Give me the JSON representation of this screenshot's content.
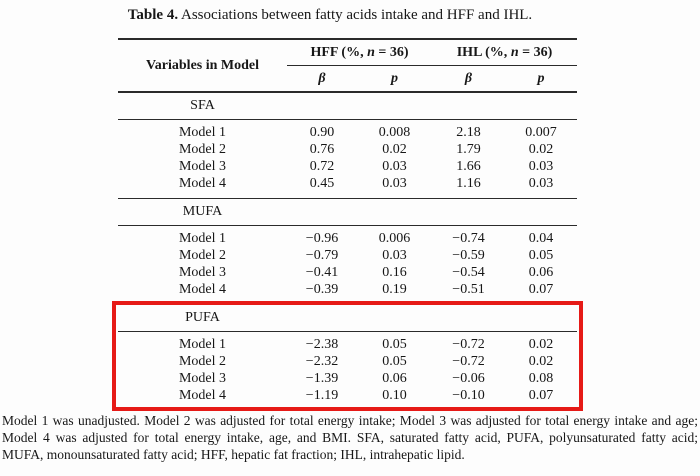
{
  "title": {
    "label": "Table 4.",
    "text": " Associations between fatty acids intake and HFF and IHL."
  },
  "table": {
    "variables_header": "Variables in Model",
    "group1": {
      "pre": "HFF (%, ",
      "n": "n",
      "post": " = 36)"
    },
    "group2": {
      "pre": "IHL (%, ",
      "n": "n",
      "post": " = 36)"
    },
    "subheaders": {
      "b1": "β",
      "p1": "p",
      "b2": "β",
      "p2": "p"
    },
    "sections": [
      {
        "label": "SFA",
        "highlighted": false,
        "rows": [
          {
            "label": "Model 1",
            "v": [
              "0.90",
              "0.008",
              "2.18",
              "0.007"
            ]
          },
          {
            "label": "Model 2",
            "v": [
              "0.76",
              "0.02",
              "1.79",
              "0.02"
            ]
          },
          {
            "label": "Model 3",
            "v": [
              "0.72",
              "0.03",
              "1.66",
              "0.03"
            ]
          },
          {
            "label": "Model 4",
            "v": [
              "0.45",
              "0.03",
              "1.16",
              "0.03"
            ]
          }
        ]
      },
      {
        "label": "MUFA",
        "highlighted": false,
        "rows": [
          {
            "label": "Model 1",
            "v": [
              "−0.96",
              "0.006",
              "−0.74",
              "0.04"
            ]
          },
          {
            "label": "Model 2",
            "v": [
              "−0.79",
              "0.03",
              "−0.59",
              "0.05"
            ]
          },
          {
            "label": "Model 3",
            "v": [
              "−0.41",
              "0.16",
              "−0.54",
              "0.06"
            ]
          },
          {
            "label": "Model 4",
            "v": [
              "−0.39",
              "0.19",
              "−0.51",
              "0.07"
            ]
          }
        ]
      },
      {
        "label": "PUFA",
        "highlighted": true,
        "rows": [
          {
            "label": "Model 1",
            "v": [
              "−2.38",
              "0.05",
              "−0.72",
              "0.02"
            ]
          },
          {
            "label": "Model 2",
            "v": [
              "−2.32",
              "0.05",
              "−0.72",
              "0.02"
            ]
          },
          {
            "label": "Model 3",
            "v": [
              "−1.39",
              "0.06",
              "−0.06",
              "0.08"
            ]
          },
          {
            "label": "Model 4",
            "v": [
              "−1.19",
              "0.10",
              "−0.10",
              "0.07"
            ]
          }
        ]
      }
    ]
  },
  "footnote": "Model 1 was unadjusted. Model 2 was adjusted for total energy intake; Model 3 was adjusted for total energy intake and age; Model 4 was adjusted for total energy intake, age, and BMI. SFA, saturated fatty acid, PUFA, polyunsaturated fatty acid; MUFA, monounsaturated fatty acid; HFF, hepatic fat fraction; IHL, intrahepatic lipid.",
  "colors": {
    "highlight_border": "#e61a17",
    "rule": "#2b2b2b",
    "background": "#fdfdfd",
    "text": "#171717"
  }
}
